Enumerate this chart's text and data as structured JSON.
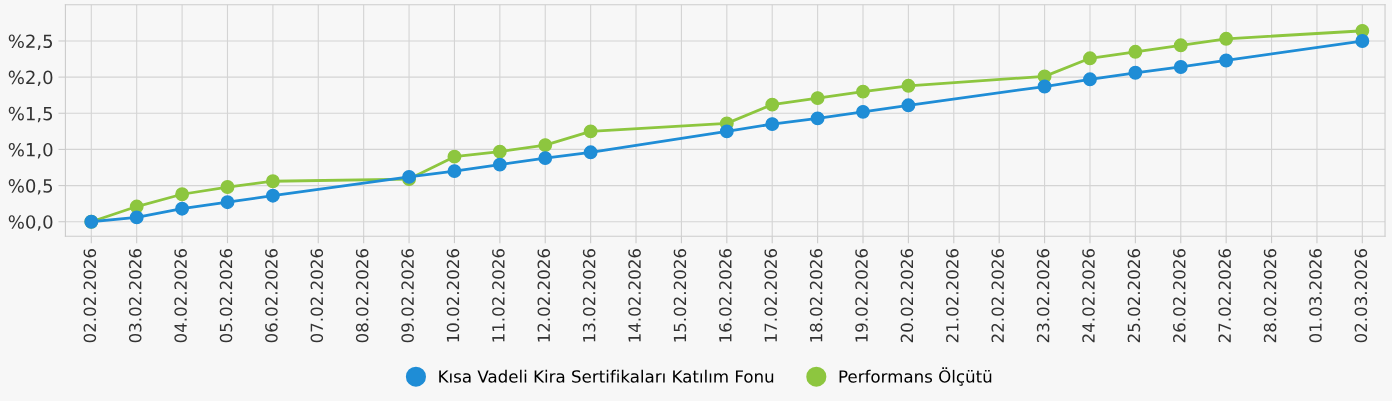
{
  "chart_data": {
    "type": "line",
    "categories": [
      "02.02.2026",
      "03.02.2026",
      "04.02.2026",
      "05.02.2026",
      "06.02.2026",
      "07.02.2026",
      "08.02.2026",
      "09.02.2026",
      "10.02.2026",
      "11.02.2026",
      "12.02.2026",
      "13.02.2026",
      "14.02.2026",
      "15.02.2026",
      "16.02.2026",
      "17.02.2026",
      "18.02.2026",
      "19.02.2026",
      "20.02.2026",
      "21.02.2026",
      "22.02.2026",
      "23.02.2026",
      "24.02.2026",
      "25.02.2026",
      "26.02.2026",
      "27.02.2026",
      "28.02.2026",
      "01.03.2026",
      "02.03.2026"
    ],
    "series": [
      {
        "name": "Kısa Vadeli Kira Sertifikaları Katılım Fonu",
        "color": "#1f8dd6",
        "values": [
          0.0,
          0.06,
          0.18,
          0.27,
          0.36,
          null,
          null,
          0.62,
          0.7,
          0.79,
          0.88,
          0.96,
          null,
          null,
          1.25,
          1.35,
          1.43,
          1.52,
          1.61,
          null,
          null,
          1.87,
          1.97,
          2.06,
          2.14,
          2.23,
          null,
          null,
          2.5
        ]
      },
      {
        "name": "Performans Ölçütü",
        "color": "#8dc63f",
        "values": [
          0.0,
          0.21,
          0.38,
          0.48,
          0.56,
          null,
          null,
          0.59,
          0.9,
          0.97,
          1.06,
          1.25,
          null,
          null,
          1.36,
          1.62,
          1.71,
          1.8,
          1.88,
          null,
          null,
          2.01,
          2.26,
          2.35,
          2.44,
          2.53,
          null,
          null,
          2.64
        ]
      }
    ],
    "ylim": [
      -0.2,
      3.0
    ],
    "yticks": [
      {
        "value": 0,
        "label": "%0,0"
      },
      {
        "value": 0.5,
        "label": "%0,5"
      },
      {
        "value": 1.0,
        "label": "%1,0"
      },
      {
        "value": 1.5,
        "label": "%1,5"
      },
      {
        "value": 2.0,
        "label": "%2,0"
      },
      {
        "value": 2.5,
        "label": "%2,5"
      }
    ],
    "grid": true,
    "legend": "bottom",
    "marker": "circle",
    "line_style": "solid"
  }
}
